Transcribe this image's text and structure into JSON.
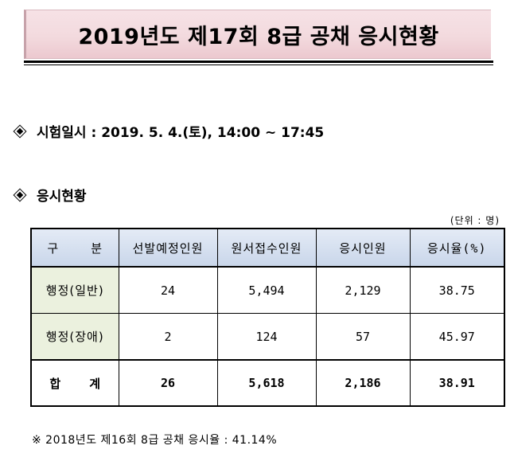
{
  "title": "2019년도 제17회 8급 공채 응시현황",
  "exam": {
    "label": "시험일시 : 2019. 5. 4.(토), 14:00 ~ 17:45"
  },
  "status_section": {
    "label": "응시현황"
  },
  "unit": "(단위 : 명)",
  "table": {
    "headers": [
      "구    분",
      "선발예정인원",
      "원서접수인원",
      "응시인원",
      "응시율(%)"
    ],
    "rows": [
      {
        "label": "행정(일반)",
        "planned": "24",
        "applied": "5,494",
        "attended": "2,129",
        "rate": "38.75"
      },
      {
        "label": "행정(장애)",
        "planned": "2",
        "applied": "124",
        "attended": "57",
        "rate": "45.97"
      }
    ],
    "total": {
      "label": "합    계",
      "planned": "26",
      "applied": "5,618",
      "attended": "2,186",
      "rate": "38.91"
    }
  },
  "footnote": "※ 2018년도 제16회 8급 공채 응시율 : 41.14%"
}
